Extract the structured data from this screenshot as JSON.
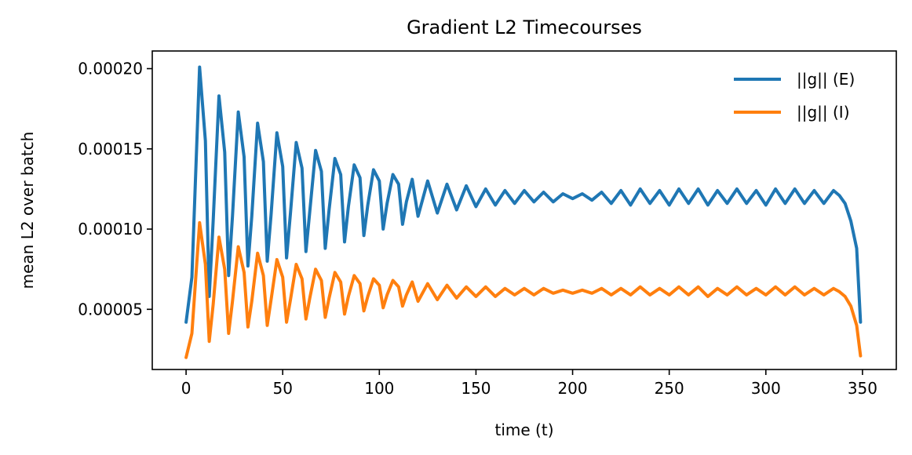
{
  "chart_data": {
    "type": "line",
    "title": "Gradient L2 Timecourses",
    "xlabel": "time (t)",
    "ylabel": "mean L2 over batch",
    "xlim": [
      -17.5,
      367.5
    ],
    "ylim": [
      1.25e-05,
      0.000211
    ],
    "xticks": [
      0,
      50,
      100,
      150,
      200,
      250,
      300,
      350
    ],
    "xtick_labels": [
      "0",
      "50",
      "100",
      "150",
      "200",
      "250",
      "300",
      "350"
    ],
    "yticks": [
      5e-05,
      0.0001,
      0.00015,
      0.0002
    ],
    "ytick_labels": [
      "0.00005",
      "0.00010",
      "0.00015",
      "0.00020"
    ],
    "grid": false,
    "legend_position": "top-right",
    "series": [
      {
        "name": "||g|| (E)",
        "color": "#1f77b4",
        "x": [
          0,
          3,
          7,
          10,
          12,
          14,
          17,
          20,
          22,
          24,
          27,
          30,
          32,
          34,
          37,
          40,
          42,
          44,
          47,
          50,
          52,
          54,
          57,
          60,
          62,
          64,
          67,
          70,
          72,
          74,
          77,
          80,
          82,
          84,
          87,
          90,
          92,
          94,
          97,
          100,
          102,
          104,
          107,
          110,
          112,
          114,
          117,
          120,
          125,
          130,
          135,
          140,
          145,
          150,
          155,
          160,
          165,
          170,
          175,
          180,
          185,
          190,
          195,
          200,
          205,
          210,
          215,
          220,
          225,
          230,
          235,
          240,
          245,
          250,
          255,
          260,
          265,
          270,
          275,
          280,
          285,
          290,
          295,
          300,
          305,
          310,
          315,
          320,
          325,
          330,
          335,
          338,
          341,
          344,
          347,
          349
        ],
        "y": [
          4.2e-05,
          7e-05,
          0.000201,
          0.000155,
          5.8e-05,
          0.000105,
          0.000183,
          0.000148,
          7.1e-05,
          0.000108,
          0.000173,
          0.000145,
          7.7e-05,
          0.000108,
          0.000166,
          0.000142,
          8e-05,
          0.000109,
          0.00016,
          0.000139,
          8.2e-05,
          0.00011,
          0.000154,
          0.000138,
          8.6e-05,
          0.000111,
          0.000149,
          0.000136,
          8.8e-05,
          0.000112,
          0.000144,
          0.000134,
          9.2e-05,
          0.000114,
          0.00014,
          0.000132,
          9.6e-05,
          0.000115,
          0.000137,
          0.00013,
          0.0001,
          0.000116,
          0.000134,
          0.000128,
          0.000103,
          0.000117,
          0.000131,
          0.000108,
          0.00013,
          0.00011,
          0.000128,
          0.000112,
          0.000127,
          0.000114,
          0.000125,
          0.000115,
          0.000124,
          0.000116,
          0.000124,
          0.000117,
          0.000123,
          0.000117,
          0.000122,
          0.000119,
          0.000122,
          0.000118,
          0.000123,
          0.000116,
          0.000124,
          0.000115,
          0.000125,
          0.000116,
          0.000124,
          0.000115,
          0.000125,
          0.000116,
          0.000125,
          0.000115,
          0.000124,
          0.000116,
          0.000125,
          0.000116,
          0.000124,
          0.000115,
          0.000125,
          0.000116,
          0.000125,
          0.000116,
          0.000124,
          0.000116,
          0.000124,
          0.000121,
          0.000116,
          0.000105,
          8.8e-05,
          4.2e-05
        ]
      },
      {
        "name": "||g|| (I)",
        "color": "#ff7f0e",
        "x": [
          0,
          3,
          7,
          10,
          12,
          14,
          17,
          20,
          22,
          24,
          27,
          30,
          32,
          34,
          37,
          40,
          42,
          44,
          47,
          50,
          52,
          54,
          57,
          60,
          62,
          64,
          67,
          70,
          72,
          74,
          77,
          80,
          82,
          84,
          87,
          90,
          92,
          94,
          97,
          100,
          102,
          104,
          107,
          110,
          112,
          114,
          117,
          120,
          125,
          130,
          135,
          140,
          145,
          150,
          155,
          160,
          165,
          170,
          175,
          180,
          185,
          190,
          195,
          200,
          205,
          210,
          215,
          220,
          225,
          230,
          235,
          240,
          245,
          250,
          255,
          260,
          265,
          270,
          275,
          280,
          285,
          290,
          295,
          300,
          305,
          310,
          315,
          320,
          325,
          330,
          335,
          338,
          341,
          344,
          347,
          349
        ],
        "y": [
          2e-05,
          3.5e-05,
          0.000104,
          7.8e-05,
          3e-05,
          5.3e-05,
          9.5e-05,
          7.5e-05,
          3.5e-05,
          5.5e-05,
          8.9e-05,
          7.3e-05,
          3.9e-05,
          5.5e-05,
          8.5e-05,
          7.1e-05,
          4e-05,
          5.6e-05,
          8.1e-05,
          7e-05,
          4.2e-05,
          5.6e-05,
          7.8e-05,
          6.9e-05,
          4.4e-05,
          5.7e-05,
          7.5e-05,
          6.8e-05,
          4.5e-05,
          5.7e-05,
          7.3e-05,
          6.7e-05,
          4.7e-05,
          5.8e-05,
          7.1e-05,
          6.6e-05,
          4.9e-05,
          5.8e-05,
          6.9e-05,
          6.5e-05,
          5.1e-05,
          5.9e-05,
          6.8e-05,
          6.4e-05,
          5.2e-05,
          5.9e-05,
          6.7e-05,
          5.5e-05,
          6.6e-05,
          5.6e-05,
          6.5e-05,
          5.7e-05,
          6.4e-05,
          5.8e-05,
          6.4e-05,
          5.8e-05,
          6.3e-05,
          5.9e-05,
          6.3e-05,
          5.9e-05,
          6.3e-05,
          6e-05,
          6.2e-05,
          6e-05,
          6.2e-05,
          6e-05,
          6.3e-05,
          5.9e-05,
          6.3e-05,
          5.9e-05,
          6.4e-05,
          5.9e-05,
          6.3e-05,
          5.9e-05,
          6.4e-05,
          5.9e-05,
          6.4e-05,
          5.8e-05,
          6.3e-05,
          5.9e-05,
          6.4e-05,
          5.9e-05,
          6.3e-05,
          5.9e-05,
          6.4e-05,
          5.9e-05,
          6.4e-05,
          5.9e-05,
          6.3e-05,
          5.9e-05,
          6.3e-05,
          6.1e-05,
          5.8e-05,
          5.2e-05,
          4e-05,
          2.1e-05
        ]
      }
    ]
  }
}
